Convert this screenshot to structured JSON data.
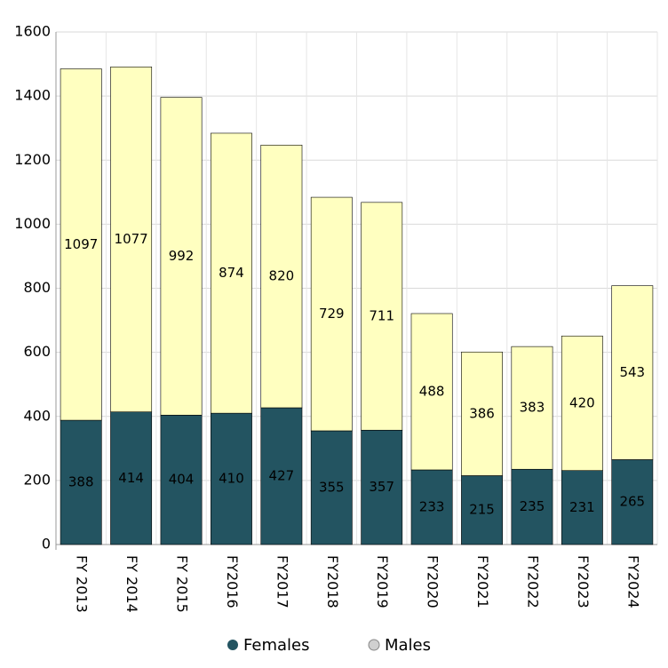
{
  "chart_data": {
    "type": "stacked_bar",
    "categories": [
      "FY 2013",
      "FY 2014",
      "FY 2015",
      "FY2016",
      "FY2017",
      "FY2018",
      "FY2019",
      "FY2020",
      "FY2021",
      "FY2022",
      "FY2023",
      "FY2024"
    ],
    "series": [
      {
        "name": "Females",
        "color": "#235461",
        "label_color": "#ffffff",
        "values": [
          388,
          414,
          404,
          410,
          427,
          355,
          357,
          233,
          215,
          235,
          231,
          265
        ]
      },
      {
        "name": "Males",
        "color": "#ffffc0",
        "label_color": "#000000",
        "values": [
          1097,
          1077,
          992,
          874,
          820,
          729,
          711,
          488,
          386,
          383,
          420,
          543
        ]
      }
    ],
    "ylim": [
      0,
      1600
    ],
    "yticks": [
      0,
      200,
      400,
      600,
      800,
      1000,
      1200,
      1400,
      1600
    ],
    "grid": true,
    "legend": "bottom"
  }
}
